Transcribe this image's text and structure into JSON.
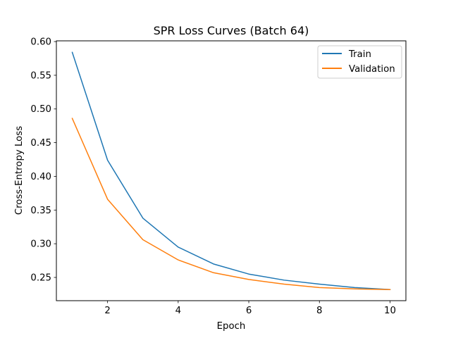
{
  "chart_data": {
    "type": "line",
    "title": "SPR Loss Curves (Batch 64)",
    "xlabel": "Epoch",
    "ylabel": "Cross-Entropy Loss",
    "x": [
      1,
      2,
      3,
      4,
      5,
      6,
      7,
      8,
      9,
      10
    ],
    "xlim": [
      0.55,
      10.45
    ],
    "ylim": [
      0.2155,
      0.6011
    ],
    "xticks": [
      2,
      4,
      6,
      8,
      10
    ],
    "yticks": [
      0.25,
      0.3,
      0.35,
      0.4,
      0.45,
      0.5,
      0.55,
      0.6
    ],
    "xtick_labels": [
      "2",
      "4",
      "6",
      "8",
      "10"
    ],
    "ytick_labels": [
      "0.25",
      "0.30",
      "0.35",
      "0.40",
      "0.45",
      "0.50",
      "0.55",
      "0.60"
    ],
    "grid": false,
    "legend_position": "upper-right",
    "series": [
      {
        "name": "Train",
        "color": "#1f77b4",
        "values": [
          0.584,
          0.424,
          0.338,
          0.295,
          0.27,
          0.255,
          0.246,
          0.24,
          0.235,
          0.232
        ]
      },
      {
        "name": "Validation",
        "color": "#ff7f0e",
        "values": [
          0.486,
          0.366,
          0.306,
          0.276,
          0.257,
          0.247,
          0.24,
          0.235,
          0.233,
          0.232
        ]
      }
    ]
  }
}
